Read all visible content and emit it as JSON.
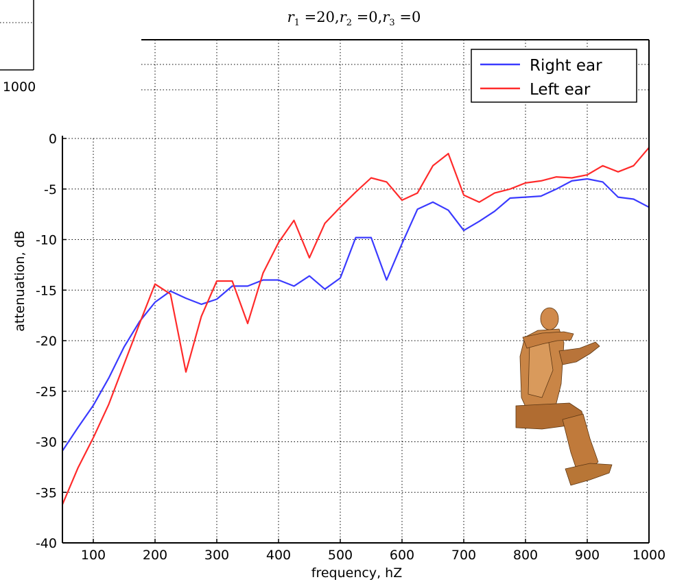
{
  "chart_data": {
    "type": "line",
    "title": {
      "r1": "20",
      "r2": "0",
      "r3": "0"
    },
    "xlabel": "frequency, hZ",
    "ylabel": "attenuation, dB",
    "xlim": [
      50,
      1000
    ],
    "ylim": [
      -40,
      0
    ],
    "grid": true,
    "legend_position": "top-right",
    "x_ticks": [
      100,
      200,
      300,
      400,
      500,
      600,
      700,
      800,
      900,
      1000
    ],
    "y_ticks": [
      0,
      -5,
      -10,
      -15,
      -20,
      -25,
      -30,
      -35,
      -40
    ],
    "x": [
      50,
      75,
      100,
      125,
      150,
      175,
      200,
      225,
      250,
      275,
      300,
      325,
      350,
      375,
      400,
      425,
      450,
      475,
      500,
      525,
      550,
      575,
      600,
      625,
      650,
      675,
      700,
      725,
      750,
      775,
      800,
      825,
      850,
      875,
      900,
      925,
      950,
      975,
      1000
    ],
    "series": [
      {
        "name": "Right ear",
        "color": "#3a3aff",
        "values": [
          -30.9,
          -28.6,
          -26.4,
          -23.7,
          -20.6,
          -18.1,
          -16.2,
          -15.1,
          -15.8,
          -16.4,
          -15.9,
          -14.6,
          -14.6,
          -14.0,
          -14.0,
          -14.6,
          -13.6,
          -14.9,
          -13.8,
          -9.8,
          -9.8,
          -14.0,
          -10.4,
          -7.0,
          -6.3,
          -7.1,
          -9.1,
          -8.2,
          -7.2,
          -5.9,
          -5.8,
          -5.7,
          -5.0,
          -4.2,
          -4.0,
          -4.3,
          -5.8,
          -6.0,
          -6.8
        ]
      },
      {
        "name": "Left ear",
        "color": "#ff2a2a",
        "values": [
          -36.2,
          -32.6,
          -29.6,
          -26.3,
          -22.3,
          -18.3,
          -14.4,
          -15.4,
          -23.1,
          -17.6,
          -14.1,
          -14.1,
          -18.3,
          -13.3,
          -10.3,
          -8.1,
          -11.8,
          -8.4,
          -6.8,
          -5.3,
          -3.9,
          -4.3,
          -6.1,
          -5.4,
          -2.7,
          -1.5,
          -5.6,
          -6.3,
          -5.4,
          -5.0,
          -4.4,
          -4.2,
          -3.8,
          -3.9,
          -3.6,
          -2.7,
          -3.3,
          -2.7,
          -0.9
        ]
      }
    ]
  },
  "partial_panel": {
    "tick_label": "1000"
  }
}
